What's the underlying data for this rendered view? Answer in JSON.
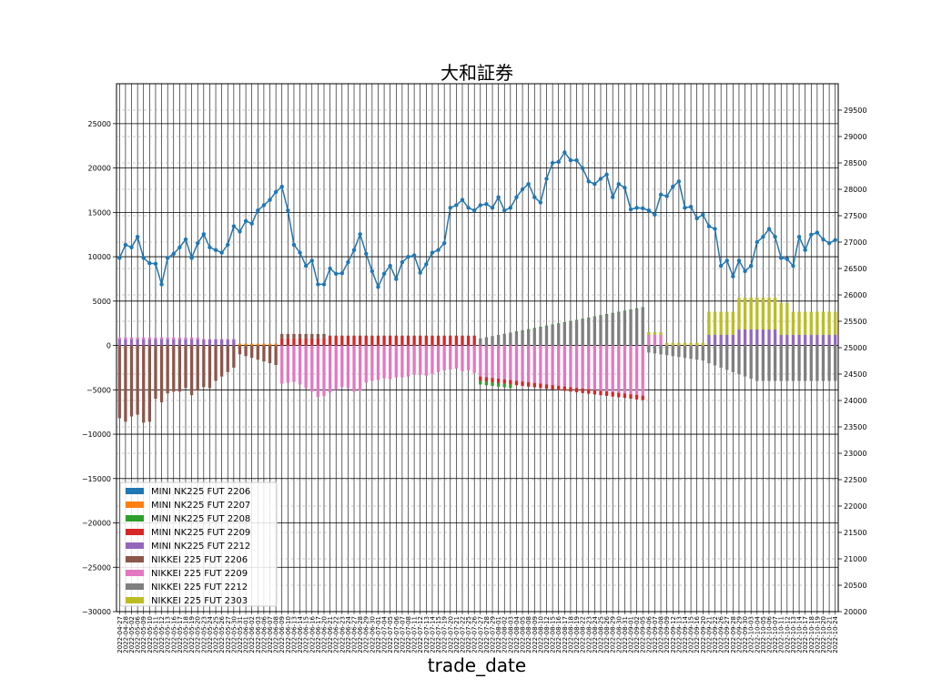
{
  "chart_data": {
    "type": "bar",
    "title": "大和証券",
    "xlabel": "trade_date",
    "ylabel": "",
    "ylim": [
      -30000,
      29500
    ],
    "y2lim": [
      20000,
      30000
    ],
    "yticks": [
      -30000,
      -25000,
      -20000,
      -15000,
      -10000,
      -5000,
      0,
      5000,
      10000,
      15000,
      20000,
      25000
    ],
    "y2ticks": [
      20000,
      20500,
      21000,
      21500,
      22000,
      22500,
      23000,
      23500,
      24000,
      24500,
      25000,
      25500,
      26000,
      26500,
      27000,
      27500,
      28000,
      28500,
      29000,
      29500
    ],
    "grid": true,
    "legend_position": "lower-left",
    "categories": [
      "2022-04-27",
      "2022-04-28",
      "2022-05-02",
      "2022-05-06",
      "2022-05-09",
      "2022-05-10",
      "2022-05-11",
      "2022-05-12",
      "2022-05-13",
      "2022-05-16",
      "2022-05-17",
      "2022-05-18",
      "2022-05-19",
      "2022-05-20",
      "2022-05-23",
      "2022-05-24",
      "2022-05-25",
      "2022-05-26",
      "2022-05-27",
      "2022-05-30",
      "2022-05-31",
      "2022-06-01",
      "2022-06-02",
      "2022-06-03",
      "2022-06-06",
      "2022-06-07",
      "2022-06-08",
      "2022-06-09",
      "2022-06-10",
      "2022-06-13",
      "2022-06-14",
      "2022-06-15",
      "2022-06-16",
      "2022-06-17",
      "2022-06-20",
      "2022-06-21",
      "2022-06-22",
      "2022-06-23",
      "2022-06-24",
      "2022-06-27",
      "2022-06-28",
      "2022-06-29",
      "2022-06-30",
      "2022-07-01",
      "2022-07-04",
      "2022-07-05",
      "2022-07-06",
      "2022-07-07",
      "2022-07-08",
      "2022-07-11",
      "2022-07-12",
      "2022-07-13",
      "2022-07-14",
      "2022-07-15",
      "2022-07-19",
      "2022-07-20",
      "2022-07-21",
      "2022-07-22",
      "2022-07-25",
      "2022-07-26",
      "2022-07-27",
      "2022-07-28",
      "2022-07-29",
      "2022-08-01",
      "2022-08-02",
      "2022-08-03",
      "2022-08-04",
      "2022-08-05",
      "2022-08-08",
      "2022-08-09",
      "2022-08-10",
      "2022-08-12",
      "2022-08-15",
      "2022-08-16",
      "2022-08-17",
      "2022-08-18",
      "2022-08-19",
      "2022-08-22",
      "2022-08-23",
      "2022-08-24",
      "2022-08-25",
      "2022-08-26",
      "2022-08-29",
      "2022-08-30",
      "2022-08-31",
      "2022-09-01",
      "2022-09-02",
      "2022-09-05",
      "2022-09-06",
      "2022-09-07",
      "2022-09-08",
      "2022-09-09",
      "2022-09-12",
      "2022-09-13",
      "2022-09-14",
      "2022-09-15",
      "2022-09-16",
      "2022-09-20",
      "2022-09-21",
      "2022-09-22",
      "2022-09-26",
      "2022-09-27",
      "2022-09-28",
      "2022-09-29",
      "2022-09-30",
      "2022-10-03",
      "2022-10-04",
      "2022-10-05",
      "2022-10-06",
      "2022-10-07",
      "2022-10-11",
      "2022-10-12",
      "2022-10-13",
      "2022-10-14",
      "2022-10-17",
      "2022-10-18",
      "2022-10-19",
      "2022-10-20",
      "2022-10-21",
      "2022-10-24"
    ],
    "line": {
      "values": [
        26700,
        26950,
        26900,
        27100,
        26700,
        26600,
        26590,
        26200,
        26700,
        26780,
        26900,
        27050,
        26700,
        26980,
        27150,
        26900,
        26850,
        26800,
        26950,
        27300,
        27200,
        27400,
        27350,
        27600,
        27700,
        27800,
        27950,
        28050,
        27600,
        26950,
        26800,
        26550,
        26650,
        26200,
        26200,
        26500,
        26400,
        26410,
        26620,
        26850,
        27150,
        26780,
        26450,
        26150,
        26400,
        26550,
        26300,
        26620,
        26720,
        26750,
        26420,
        26580,
        26800,
        26850,
        26980,
        27650,
        27700,
        27800,
        27650,
        27600,
        27700,
        27720,
        27650,
        27850,
        27600,
        27650,
        27850,
        28000,
        28100,
        27850,
        27750,
        28200,
        28500,
        28520,
        28700,
        28550,
        28550,
        28400,
        28150,
        28100,
        28200,
        28280,
        27850,
        28100,
        28030,
        27620,
        27650,
        27640,
        27600,
        27520,
        27900,
        27870,
        28050,
        28150,
        27650,
        27670,
        27450,
        27520,
        27300,
        27250,
        26550,
        26650,
        26350,
        26650,
        26450,
        26550,
        27000,
        27100,
        27250,
        27100,
        26700,
        26680,
        26550,
        27100,
        26850,
        27140,
        27180,
        27050,
        26980,
        27040
      ],
      "color": "#1f77b4"
    },
    "series": [
      {
        "name": "MINI NK225 FUT 2206",
        "color": "#1f77b4"
      },
      {
        "name": "MINI NK225 FUT 2207",
        "color": "#ff7f0e"
      },
      {
        "name": "MINI NK225 FUT 2208",
        "color": "#2ca02c"
      },
      {
        "name": "MINI NK225 FUT 2209",
        "color": "#d62728"
      },
      {
        "name": "MINI NK225 FUT 2212",
        "color": "#9467bd"
      },
      {
        "name": "NIKKEI 225 FUT 2206",
        "color": "#8c564b"
      },
      {
        "name": "NIKKEI 225 FUT 2209",
        "color": "#e377c2"
      },
      {
        "name": "NIKKEI 225 FUT 2212",
        "color": "#7f7f7f"
      },
      {
        "name": "NIKKEI 225 FUT 2303",
        "color": "#bcbd22"
      }
    ]
  }
}
